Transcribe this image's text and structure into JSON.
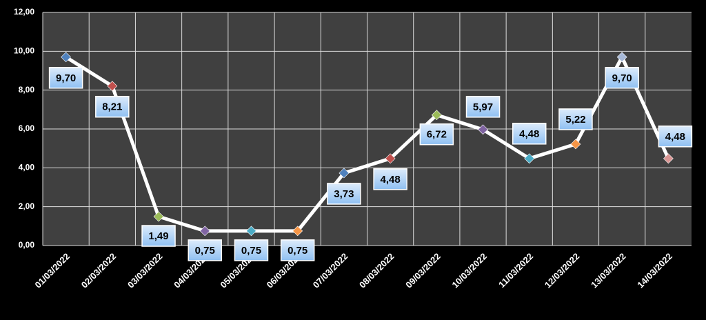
{
  "chart_data": {
    "type": "line",
    "categories": [
      "01/03/2022",
      "02/03/2022",
      "03/03/2022",
      "04/03/2022",
      "05/03/2022",
      "06/03/2022",
      "07/03/2022",
      "08/03/2022",
      "09/03/2022",
      "10/03/2022",
      "11/03/2022",
      "12/03/2022",
      "13/03/2022",
      "14/03/2022"
    ],
    "values": [
      9.7,
      8.21,
      1.49,
      0.75,
      0.75,
      0.75,
      3.73,
      4.48,
      6.72,
      5.97,
      4.48,
      5.22,
      9.7,
      4.48
    ],
    "value_labels": [
      "9,70",
      "8,21",
      "1,49",
      "0,75",
      "0,75",
      "0,75",
      "3,73",
      "4,48",
      "6,72",
      "5,97",
      "4,48",
      "5,22",
      "9,70",
      "4,48"
    ],
    "color": "#ffffff",
    "point_colors": [
      "#4f81bd",
      "#c0504d",
      "#9bbb59",
      "#8064a2",
      "#4bacc6",
      "#f79646",
      "#4f81bd",
      "#c0504d",
      "#9bbb59",
      "#8064a2",
      "#4bacc6",
      "#f79646",
      "#a7b9d8",
      "#d99694"
    ],
    "ylim": [
      0,
      12
    ],
    "yticks": [
      {
        "value": 0,
        "label": "0,00"
      },
      {
        "value": 2,
        "label": "2,00"
      },
      {
        "value": 4,
        "label": "4,00"
      },
      {
        "value": 6,
        "label": "6,00"
      },
      {
        "value": 8,
        "label": "8,00"
      },
      {
        "value": 10,
        "label": "10,00"
      },
      {
        "value": 12,
        "label": "12,00"
      }
    ],
    "grid": true
  }
}
